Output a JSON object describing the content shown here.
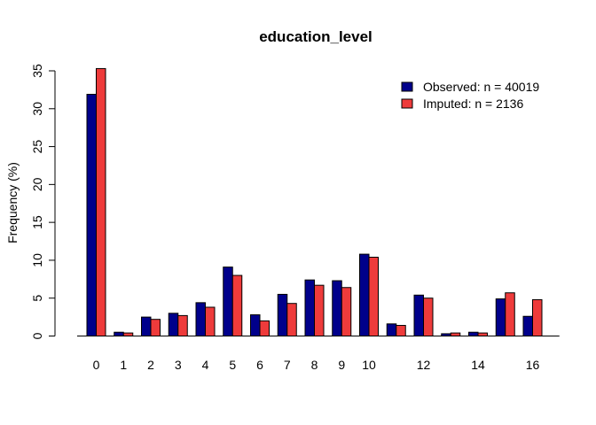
{
  "chart_data": {
    "type": "bar",
    "title": "education_level",
    "xlabel": "",
    "ylabel": "Frequency (%)",
    "ylim": [
      0,
      35
    ],
    "yticks": [
      "0",
      "5",
      "10",
      "15",
      "20",
      "25",
      "30",
      "35"
    ],
    "categories": [
      "0",
      "1",
      "2",
      "3",
      "4",
      "5",
      "6",
      "7",
      "8",
      "9",
      "10",
      "11",
      "12",
      "13",
      "14",
      "15",
      "16"
    ],
    "xtick_labels": [
      "0",
      "1",
      "2",
      "3",
      "4",
      "5",
      "6",
      "7",
      "8",
      "9",
      "10",
      "",
      "12",
      "",
      "14",
      "",
      "16"
    ],
    "series": [
      {
        "name": "Observed: n = 40019",
        "color": "#00008B",
        "values": [
          31.9,
          0.5,
          2.5,
          3.0,
          4.4,
          9.1,
          2.8,
          5.5,
          7.4,
          7.3,
          10.8,
          1.6,
          5.4,
          0.3,
          0.5,
          4.9,
          2.6
        ]
      },
      {
        "name": "Imputed: n = 2136",
        "color": "#EE3B3B",
        "values": [
          35.3,
          0.4,
          2.2,
          2.7,
          3.8,
          8.0,
          2.0,
          4.3,
          6.7,
          6.4,
          10.4,
          1.4,
          5.0,
          0.4,
          0.4,
          5.7,
          4.8
        ]
      }
    ],
    "legend_position": "top-right",
    "grid": false
  }
}
